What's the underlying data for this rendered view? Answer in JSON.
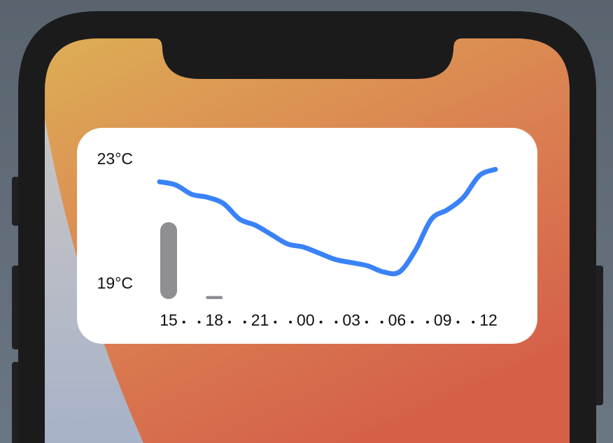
{
  "chart_data": {
    "type": "line",
    "categories": [
      "15",
      null,
      null,
      "18",
      null,
      null,
      "21",
      null,
      null,
      "00",
      null,
      null,
      "03",
      null,
      null,
      "06",
      null,
      null,
      "09",
      null,
      null,
      "12"
    ],
    "values": [
      22.3,
      22.2,
      21.9,
      21.8,
      21.6,
      21.1,
      20.9,
      20.6,
      20.3,
      20.2,
      20.0,
      19.8,
      19.7,
      19.6,
      19.4,
      19.4,
      20.1,
      21.1,
      21.4,
      21.8,
      22.5,
      22.7
    ],
    "color": "#3a82f7",
    "ylim": [
      19,
      23
    ],
    "yticks": [
      {
        "value": 19,
        "label": "19°C"
      },
      {
        "value": 23,
        "label": "23°C"
      }
    ],
    "bars": [
      25,
      0,
      0,
      1,
      0,
      0,
      0,
      0,
      0,
      0,
      0,
      0,
      0,
      0,
      0,
      0,
      0,
      0,
      0,
      0,
      0,
      0
    ],
    "bar_lim": [
      0,
      25
    ],
    "bar_color": "#8e8e93"
  }
}
